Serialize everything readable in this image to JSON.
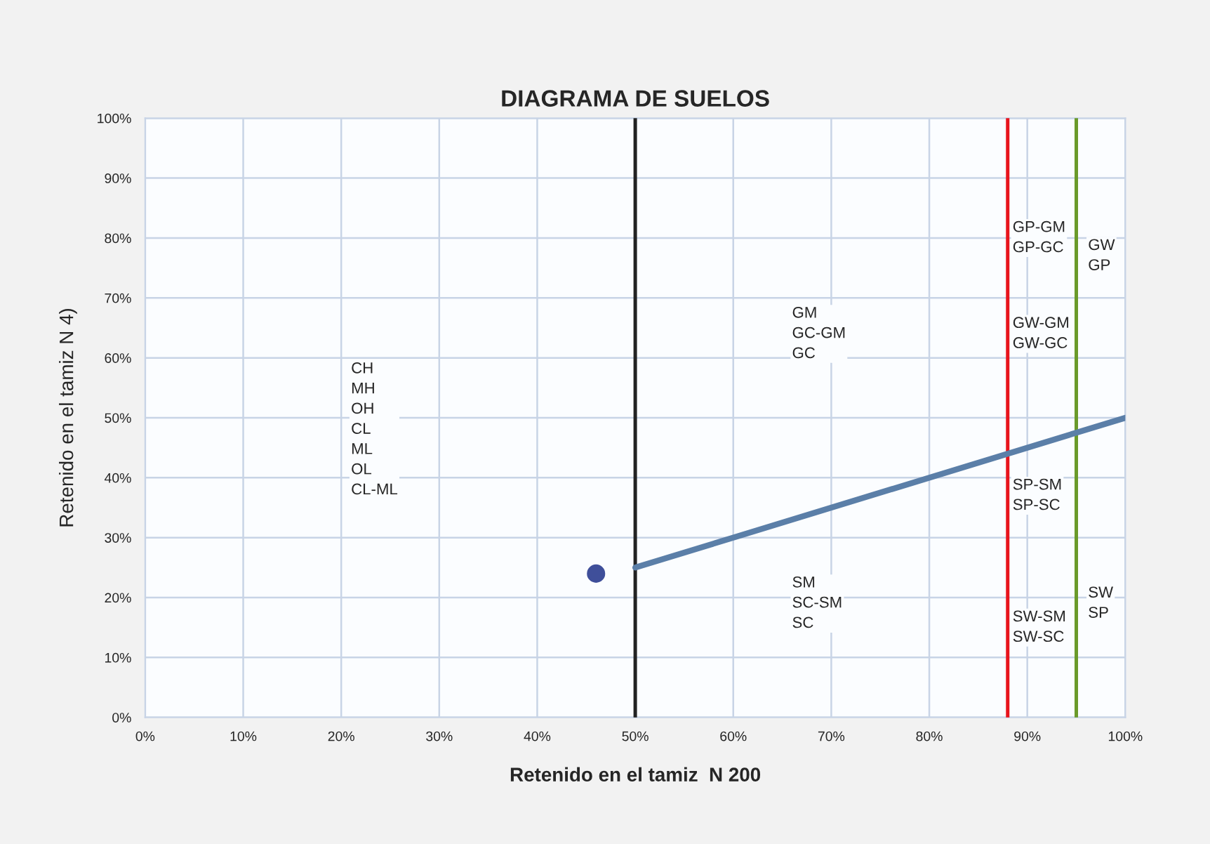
{
  "chart_data": {
    "type": "line",
    "title": "DIAGRAMA DE SUELOS",
    "xlabel": "Retenido en el tamiz  N 200",
    "ylabel": "Retenido en el tamiz N 4)",
    "series": [
      {
        "color": "#5b7fa8",
        "x": [
          50,
          100
        ],
        "values": [
          25,
          50
        ]
      },
      {
        "type": "scatter",
        "color": "#3f4f9a",
        "x": [
          46
        ],
        "values": [
          24
        ]
      }
    ],
    "xlim": [
      0,
      100
    ],
    "ylim": [
      0,
      100
    ],
    "xticks": [
      {
        "value": 0,
        "label": "0%"
      },
      {
        "value": 10,
        "label": "10%"
      },
      {
        "value": 20,
        "label": "20%"
      },
      {
        "value": 30,
        "label": "30%"
      },
      {
        "value": 40,
        "label": "40%"
      },
      {
        "value": 50,
        "label": "50%"
      },
      {
        "value": 60,
        "label": "60%"
      },
      {
        "value": 70,
        "label": "70%"
      },
      {
        "value": 80,
        "label": "80%"
      },
      {
        "value": 90,
        "label": "90%"
      },
      {
        "value": 100,
        "label": "100%"
      }
    ],
    "yticks": [
      {
        "value": 0,
        "label": "0%"
      },
      {
        "value": 10,
        "label": "10%"
      },
      {
        "value": 20,
        "label": "20%"
      },
      {
        "value": 30,
        "label": "30%"
      },
      {
        "value": 40,
        "label": "40%"
      },
      {
        "value": 50,
        "label": "50%"
      },
      {
        "value": 60,
        "label": "60%"
      },
      {
        "value": 70,
        "label": "70%"
      },
      {
        "value": 80,
        "label": "80%"
      },
      {
        "value": 90,
        "label": "90%"
      },
      {
        "value": 100,
        "label": "100%"
      }
    ],
    "ref_lines": [
      {
        "axis": "x",
        "value": 50,
        "color": "#222222"
      },
      {
        "axis": "x",
        "value": 88,
        "color": "#e8141c"
      },
      {
        "axis": "x",
        "value": 95,
        "color": "#6a9a2a"
      }
    ],
    "annotations": [
      "CH\nMH\nOH\nCL\nML\nOL\nCL-ML",
      "GM\nGC-GM\nGC",
      "GP-GM\nGP-GC",
      "GW\nGP",
      "GW-GM\nGW-GC",
      "SP-SM\nSP-SC",
      "SM\nSC-SM\nSC",
      "SW-SM\nSW-SC",
      "SW\nSP"
    ],
    "grid": true
  }
}
